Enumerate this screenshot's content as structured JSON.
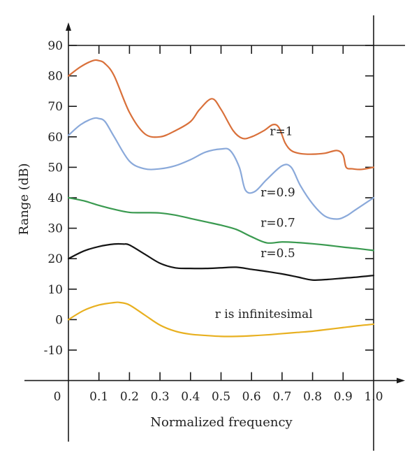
{
  "chart_data": {
    "type": "line",
    "title": "",
    "xlabel": "Normalized frequency",
    "ylabel": "Range (dB)",
    "xlim": [
      0,
      1.0
    ],
    "ylim": [
      -20,
      90
    ],
    "x_ticks": [
      "0",
      "0.1",
      "0.2",
      "0.3",
      "0.4",
      "0.5",
      "0.6",
      "0.7",
      "0.8",
      "0.9",
      "1.0"
    ],
    "y_ticks": [
      "90",
      "80",
      "70",
      "60",
      "50",
      "40",
      "30",
      "20",
      "10",
      "0",
      "-10"
    ],
    "grid": false,
    "legend": "inline labels",
    "series": [
      {
        "name": "r=1",
        "color": "#d9703a",
        "x": [
          0,
          0.04,
          0.08,
          0.1,
          0.12,
          0.15,
          0.2,
          0.25,
          0.3,
          0.35,
          0.4,
          0.43,
          0.47,
          0.5,
          0.54,
          0.57,
          0.6,
          0.64,
          0.67,
          0.69,
          0.71,
          0.73,
          0.76,
          0.8,
          0.84,
          0.88,
          0.9,
          0.91,
          0.93,
          0.96,
          1.0
        ],
        "y": [
          80,
          83,
          85,
          85,
          84,
          80,
          68,
          61,
          60,
          62,
          65,
          69,
          72.5,
          69,
          62,
          59.5,
          60,
          62,
          64,
          63,
          58,
          55.5,
          54.5,
          54.3,
          54.6,
          55.5,
          54,
          50,
          49.5,
          49.3,
          50
        ]
      },
      {
        "name": "r=0.9",
        "color": "#8aa9da",
        "x": [
          0,
          0.04,
          0.08,
          0.1,
          0.12,
          0.15,
          0.2,
          0.25,
          0.3,
          0.35,
          0.4,
          0.45,
          0.5,
          0.53,
          0.56,
          0.58,
          0.61,
          0.65,
          0.7,
          0.73,
          0.76,
          0.8,
          0.84,
          0.88,
          0.91,
          0.94,
          1.0
        ],
        "y": [
          60.5,
          64,
          66,
          66,
          65,
          60,
          52,
          49.5,
          49.5,
          50.5,
          52.5,
          55,
          56,
          55.5,
          50,
          42.5,
          42,
          46,
          50.5,
          50,
          44,
          38,
          34,
          33,
          34,
          36,
          40
        ]
      },
      {
        "name": "r=0.7",
        "color": "#3a9a50",
        "x": [
          0,
          0.05,
          0.1,
          0.15,
          0.2,
          0.25,
          0.3,
          0.35,
          0.4,
          0.45,
          0.5,
          0.55,
          0.6,
          0.65,
          0.7,
          0.75,
          0.8,
          0.85,
          0.9,
          0.95,
          1.0
        ],
        "y": [
          40,
          39,
          37.5,
          36.2,
          35.2,
          35.1,
          35,
          34.3,
          33.2,
          32.1,
          31,
          29.6,
          27.2,
          25.2,
          25.5,
          25.3,
          24.9,
          24.4,
          23.8,
          23.3,
          22.7
        ]
      },
      {
        "name": "r=0.5",
        "color": "#141414",
        "x": [
          0,
          0.05,
          0.1,
          0.15,
          0.18,
          0.2,
          0.25,
          0.3,
          0.35,
          0.4,
          0.45,
          0.5,
          0.55,
          0.6,
          0.65,
          0.7,
          0.75,
          0.8,
          0.85,
          0.9,
          0.95,
          1.0
        ],
        "y": [
          20,
          22.5,
          24,
          24.8,
          24.8,
          24.5,
          21.5,
          18.5,
          17,
          16.8,
          16.8,
          17,
          17.2,
          16.5,
          15.8,
          15,
          14,
          13,
          13.2,
          13.6,
          14,
          14.5
        ]
      },
      {
        "name": "r is infinitesimal",
        "color": "#e8b020",
        "x": [
          0,
          0.05,
          0.1,
          0.15,
          0.17,
          0.2,
          0.25,
          0.3,
          0.35,
          0.4,
          0.45,
          0.5,
          0.55,
          0.6,
          0.65,
          0.7,
          0.75,
          0.8,
          0.85,
          0.9,
          0.95,
          1.0
        ],
        "y": [
          0,
          3,
          4.8,
          5.6,
          5.6,
          4.8,
          1.5,
          -1.8,
          -3.8,
          -4.8,
          -5.2,
          -5.5,
          -5.5,
          -5.3,
          -5,
          -4.6,
          -4.2,
          -3.8,
          -3.2,
          -2.6,
          -2,
          -1.5
        ]
      }
    ]
  }
}
